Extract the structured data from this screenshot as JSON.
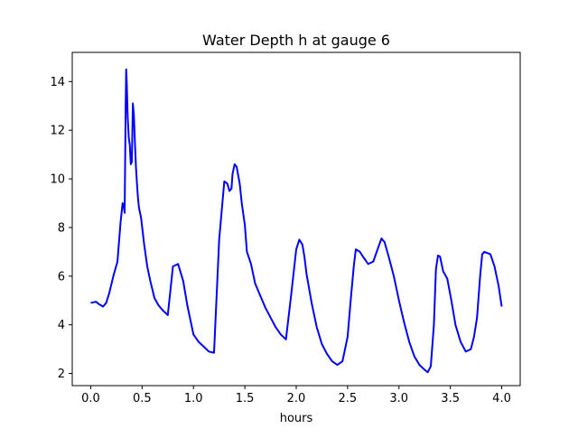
{
  "chart_data": {
    "type": "line",
    "title": "Water Depth h at gauge 6",
    "xlabel": "hours",
    "ylabel": "",
    "xlim": [
      -0.18,
      4.18
    ],
    "ylim": [
      1.5,
      15.2
    ],
    "xticks": [
      0.0,
      0.5,
      1.0,
      1.5,
      2.0,
      2.5,
      3.0,
      3.5,
      4.0
    ],
    "xtick_labels": [
      "0.0",
      "0.5",
      "1.0",
      "1.5",
      "2.0",
      "2.5",
      "3.0",
      "3.5",
      "4.0"
    ],
    "yticks": [
      2,
      4,
      6,
      8,
      10,
      12,
      14
    ],
    "ytick_labels": [
      "2",
      "4",
      "6",
      "8",
      "10",
      "12",
      "14"
    ],
    "grid": false,
    "legend": "none",
    "series": [
      {
        "color": "#0000ff",
        "x": [
          0.0,
          0.05,
          0.08,
          0.12,
          0.15,
          0.18,
          0.22,
          0.26,
          0.29,
          0.31,
          0.32,
          0.33,
          0.34,
          0.345,
          0.35,
          0.36,
          0.37,
          0.38,
          0.39,
          0.4,
          0.41,
          0.42,
          0.43,
          0.44,
          0.45,
          0.46,
          0.47,
          0.49,
          0.52,
          0.55,
          0.58,
          0.62,
          0.66,
          0.7,
          0.75,
          0.8,
          0.85,
          0.9,
          0.92,
          0.94,
          0.96,
          0.98,
          1.0,
          1.05,
          1.1,
          1.15,
          1.2,
          1.25,
          1.3,
          1.33,
          1.35,
          1.37,
          1.38,
          1.4,
          1.42,
          1.45,
          1.47,
          1.5,
          1.52,
          1.56,
          1.6,
          1.65,
          1.7,
          1.75,
          1.8,
          1.85,
          1.9,
          1.95,
          2.0,
          2.03,
          2.06,
          2.08,
          2.1,
          2.15,
          2.2,
          2.25,
          2.3,
          2.35,
          2.4,
          2.45,
          2.5,
          2.53,
          2.56,
          2.58,
          2.6,
          2.62,
          2.65,
          2.7,
          2.75,
          2.8,
          2.83,
          2.86,
          2.9,
          2.95,
          3.0,
          3.05,
          3.1,
          3.15,
          3.2,
          3.25,
          3.28,
          3.31,
          3.34,
          3.36,
          3.38,
          3.4,
          3.43,
          3.47,
          3.51,
          3.55,
          3.6,
          3.65,
          3.7,
          3.73,
          3.76,
          3.79,
          3.81,
          3.83,
          3.86,
          3.89,
          3.93,
          3.97,
          4.0
        ],
        "y": [
          4.9,
          4.95,
          4.85,
          4.75,
          4.9,
          5.3,
          6.0,
          6.6,
          8.2,
          9.0,
          8.9,
          8.6,
          13.0,
          14.5,
          14.0,
          12.5,
          11.7,
          11.4,
          10.6,
          10.7,
          13.1,
          12.6,
          11.5,
          10.5,
          9.8,
          9.2,
          8.8,
          8.4,
          7.3,
          6.4,
          5.8,
          5.1,
          4.8,
          4.6,
          4.4,
          6.4,
          6.5,
          5.8,
          5.3,
          4.8,
          4.4,
          4.0,
          3.6,
          3.3,
          3.1,
          2.9,
          2.85,
          7.5,
          9.9,
          9.8,
          9.5,
          9.6,
          10.2,
          10.6,
          10.5,
          9.8,
          9.0,
          8.1,
          7.0,
          6.5,
          5.7,
          5.2,
          4.7,
          4.3,
          3.9,
          3.6,
          3.4,
          5.2,
          7.1,
          7.5,
          7.3,
          6.8,
          6.1,
          4.9,
          3.9,
          3.2,
          2.8,
          2.5,
          2.35,
          2.5,
          3.5,
          5.0,
          6.4,
          7.1,
          7.05,
          7.0,
          6.8,
          6.5,
          6.6,
          7.2,
          7.55,
          7.4,
          6.8,
          6.0,
          5.0,
          4.1,
          3.3,
          2.7,
          2.35,
          2.15,
          2.05,
          2.3,
          4.0,
          6.3,
          6.85,
          6.8,
          6.2,
          5.9,
          5.0,
          4.0,
          3.3,
          2.9,
          3.0,
          3.5,
          4.3,
          6.0,
          6.9,
          7.0,
          6.95,
          6.9,
          6.4,
          5.6,
          4.75
        ]
      }
    ]
  }
}
